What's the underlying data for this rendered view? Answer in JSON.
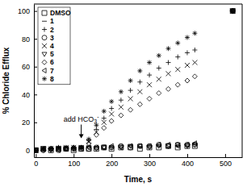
{
  "chart_data": {
    "type": "scatter",
    "x_label": "Time, s",
    "y_label": "% Chloride Efflux",
    "xlim": [
      -5,
      545
    ],
    "ylim": [
      -5,
      105
    ],
    "xticks": [
      0,
      100,
      200,
      300,
      400,
      500
    ],
    "yticks": [
      0,
      20,
      40,
      60,
      80,
      100
    ],
    "legend": "upper left",
    "grid": false,
    "annotations": [
      {
        "text": "add HCO3-",
        "x": 120,
        "y": 8
      }
    ],
    "x": [
      0,
      20,
      40,
      60,
      80,
      100,
      120,
      140,
      160,
      180,
      200,
      225,
      250,
      275,
      300,
      325,
      350,
      375,
      400,
      420,
      520
    ],
    "series": [
      {
        "name": "DMSO",
        "color": "#000000",
        "marker": "square",
        "values": [
          0,
          1,
          0,
          1,
          1,
          0,
          1,
          1,
          1,
          2,
          1,
          2,
          2,
          1,
          2,
          2,
          3,
          2,
          3,
          3,
          100
        ]
      },
      {
        "name": "1",
        "color": "#000000",
        "marker": "dash",
        "values": [
          0,
          0,
          1,
          1,
          0,
          1,
          1,
          2,
          2,
          1,
          2,
          2,
          3,
          2,
          3,
          3,
          2,
          3,
          3,
          4,
          100
        ]
      },
      {
        "name": "2",
        "color": "#000000",
        "marker": "plus",
        "values": [
          0,
          1,
          1,
          2,
          2,
          2,
          2,
          7,
          15,
          23,
          30,
          36,
          43,
          49,
          54,
          59,
          63,
          67,
          70,
          72,
          100
        ]
      },
      {
        "name": "3",
        "color": "#000000",
        "marker": "circle",
        "values": [
          0,
          0,
          1,
          0,
          1,
          1,
          1,
          1,
          2,
          2,
          2,
          3,
          2,
          3,
          3,
          4,
          3,
          4,
          4,
          4,
          100
        ]
      },
      {
        "name": "4",
        "color": "#000000",
        "marker": "times",
        "values": [
          0,
          1,
          1,
          1,
          2,
          2,
          2,
          6,
          13,
          20,
          26,
          31,
          37,
          42,
          47,
          51,
          55,
          58,
          61,
          63,
          100
        ]
      },
      {
        "name": "5",
        "color": "#000000",
        "marker": "triangle-down",
        "values": [
          0,
          1,
          0,
          1,
          1,
          1,
          2,
          2,
          1,
          2,
          2,
          2,
          3,
          3,
          2,
          3,
          3,
          4,
          3,
          4,
          100
        ]
      },
      {
        "name": "6",
        "color": "#000000",
        "marker": "diamond",
        "values": [
          0,
          0,
          1,
          1,
          1,
          2,
          2,
          5,
          11,
          16,
          21,
          25,
          29,
          33,
          37,
          41,
          44,
          47,
          50,
          53,
          100
        ]
      },
      {
        "name": "7",
        "color": "#000000",
        "marker": "triangle-left",
        "values": [
          0,
          1,
          1,
          0,
          1,
          1,
          1,
          2,
          2,
          2,
          3,
          2,
          3,
          3,
          3,
          4,
          4,
          3,
          4,
          5,
          100
        ]
      },
      {
        "name": "8",
        "color": "#000000",
        "marker": "asterisk",
        "values": [
          0,
          1,
          1,
          2,
          2,
          2,
          2,
          8,
          18,
          28,
          35,
          42,
          50,
          57,
          63,
          68,
          73,
          77,
          81,
          84,
          100
        ]
      }
    ]
  }
}
